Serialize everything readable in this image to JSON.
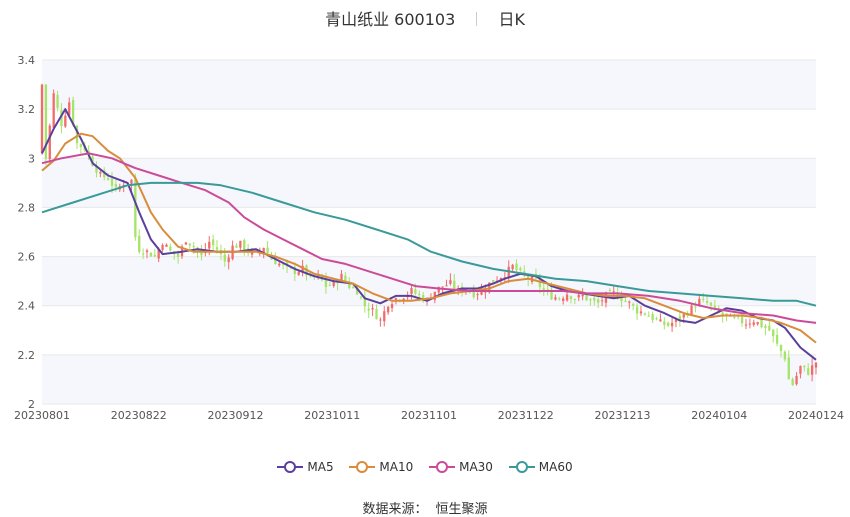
{
  "title": {
    "stock_name": "青山纸业",
    "stock_code": "600103",
    "period": "日K"
  },
  "source": {
    "label": "数据来源：",
    "provider": "恒生聚源"
  },
  "colors": {
    "up": "#f26b6b",
    "down": "#a4e468",
    "grid": "#e8e8e8",
    "band": "#f5f7fc",
    "axis_text": "#555555"
  },
  "chart_data": {
    "type": "candlestick",
    "title": "青山纸业 600103 日K",
    "x_ticks": [
      "20230801",
      "20230822",
      "20230912",
      "20231011",
      "20231101",
      "20231122",
      "20231213",
      "20240104",
      "20240124"
    ],
    "ylim": [
      2,
      3.4
    ],
    "y_ticks": [
      "2",
      "2.2",
      "2.4",
      "2.6",
      "2.8",
      "3",
      "3.2",
      "3.4"
    ],
    "legend_position": "bottom",
    "grid": true,
    "ma_series": [
      {
        "name": "MA5",
        "color": "#5b3f9c",
        "points": [
          [
            0,
            3.02
          ],
          [
            3,
            3.12
          ],
          [
            6,
            3.2
          ],
          [
            10,
            3.08
          ],
          [
            13,
            2.98
          ],
          [
            17,
            2.93
          ],
          [
            22,
            2.9
          ],
          [
            25,
            2.78
          ],
          [
            28,
            2.67
          ],
          [
            31,
            2.61
          ],
          [
            36,
            2.62
          ],
          [
            40,
            2.63
          ],
          [
            45,
            2.62
          ],
          [
            50,
            2.62
          ],
          [
            55,
            2.63
          ],
          [
            60,
            2.59
          ],
          [
            65,
            2.55
          ],
          [
            70,
            2.52
          ],
          [
            75,
            2.5
          ],
          [
            80,
            2.49
          ],
          [
            83,
            2.43
          ],
          [
            87,
            2.41
          ],
          [
            91,
            2.44
          ],
          [
            95,
            2.44
          ],
          [
            99,
            2.42
          ],
          [
            103,
            2.45
          ],
          [
            108,
            2.47
          ],
          [
            112,
            2.47
          ],
          [
            116,
            2.49
          ],
          [
            119,
            2.51
          ],
          [
            123,
            2.53
          ],
          [
            127,
            2.52
          ],
          [
            131,
            2.48
          ],
          [
            135,
            2.46
          ],
          [
            139,
            2.45
          ],
          [
            143,
            2.44
          ],
          [
            147,
            2.43
          ],
          [
            151,
            2.44
          ],
          [
            155,
            2.4
          ],
          [
            160,
            2.37
          ],
          [
            164,
            2.34
          ],
          [
            168,
            2.33
          ],
          [
            172,
            2.36
          ],
          [
            176,
            2.39
          ],
          [
            180,
            2.38
          ],
          [
            184,
            2.35
          ],
          [
            188,
            2.34
          ],
          [
            191,
            2.31
          ],
          [
            195,
            2.23
          ],
          [
            199,
            2.18
          ]
        ]
      },
      {
        "name": "MA10",
        "color": "#d88c3c",
        "points": [
          [
            0,
            2.95
          ],
          [
            3,
            2.99
          ],
          [
            6,
            3.06
          ],
          [
            10,
            3.1
          ],
          [
            13,
            3.09
          ],
          [
            17,
            3.03
          ],
          [
            20,
            3.0
          ],
          [
            24,
            2.92
          ],
          [
            28,
            2.78
          ],
          [
            31,
            2.71
          ],
          [
            35,
            2.64
          ],
          [
            39,
            2.62
          ],
          [
            44,
            2.62
          ],
          [
            49,
            2.62
          ],
          [
            55,
            2.62
          ],
          [
            60,
            2.6
          ],
          [
            65,
            2.57
          ],
          [
            70,
            2.53
          ],
          [
            75,
            2.51
          ],
          [
            80,
            2.49
          ],
          [
            85,
            2.45
          ],
          [
            90,
            2.42
          ],
          [
            95,
            2.42
          ],
          [
            100,
            2.43
          ],
          [
            105,
            2.45
          ],
          [
            110,
            2.46
          ],
          [
            115,
            2.47
          ],
          [
            120,
            2.5
          ],
          [
            125,
            2.51
          ],
          [
            130,
            2.49
          ],
          [
            135,
            2.47
          ],
          [
            140,
            2.45
          ],
          [
            145,
            2.44
          ],
          [
            150,
            2.44
          ],
          [
            155,
            2.43
          ],
          [
            160,
            2.4
          ],
          [
            165,
            2.37
          ],
          [
            170,
            2.35
          ],
          [
            175,
            2.36
          ],
          [
            180,
            2.36
          ],
          [
            185,
            2.35
          ],
          [
            190,
            2.33
          ],
          [
            195,
            2.3
          ],
          [
            199,
            2.25
          ]
        ]
      },
      {
        "name": "MA30",
        "color": "#cc4b99",
        "points": [
          [
            0,
            2.98
          ],
          [
            5,
            3.0
          ],
          [
            12,
            3.02
          ],
          [
            18,
            3.0
          ],
          [
            24,
            2.96
          ],
          [
            30,
            2.93
          ],
          [
            36,
            2.9
          ],
          [
            42,
            2.87
          ],
          [
            48,
            2.82
          ],
          [
            52,
            2.76
          ],
          [
            57,
            2.71
          ],
          [
            62,
            2.67
          ],
          [
            67,
            2.63
          ],
          [
            72,
            2.59
          ],
          [
            78,
            2.57
          ],
          [
            84,
            2.54
          ],
          [
            90,
            2.51
          ],
          [
            96,
            2.48
          ],
          [
            102,
            2.47
          ],
          [
            110,
            2.46
          ],
          [
            118,
            2.46
          ],
          [
            126,
            2.46
          ],
          [
            134,
            2.46
          ],
          [
            140,
            2.45
          ],
          [
            148,
            2.45
          ],
          [
            156,
            2.44
          ],
          [
            164,
            2.42
          ],
          [
            172,
            2.39
          ],
          [
            180,
            2.37
          ],
          [
            188,
            2.36
          ],
          [
            194,
            2.34
          ],
          [
            199,
            2.33
          ]
        ]
      },
      {
        "name": "MA60",
        "color": "#3a9999",
        "points": [
          [
            0,
            2.78
          ],
          [
            8,
            2.82
          ],
          [
            16,
            2.86
          ],
          [
            22,
            2.89
          ],
          [
            28,
            2.9
          ],
          [
            34,
            2.9
          ],
          [
            40,
            2.9
          ],
          [
            46,
            2.89
          ],
          [
            54,
            2.86
          ],
          [
            62,
            2.82
          ],
          [
            70,
            2.78
          ],
          [
            78,
            2.75
          ],
          [
            86,
            2.71
          ],
          [
            94,
            2.67
          ],
          [
            100,
            2.62
          ],
          [
            108,
            2.58
          ],
          [
            116,
            2.55
          ],
          [
            124,
            2.53
          ],
          [
            132,
            2.51
          ],
          [
            140,
            2.5
          ],
          [
            148,
            2.48
          ],
          [
            156,
            2.46
          ],
          [
            164,
            2.45
          ],
          [
            172,
            2.44
          ],
          [
            180,
            2.43
          ],
          [
            188,
            2.42
          ],
          [
            194,
            2.42
          ],
          [
            199,
            2.4
          ]
        ]
      }
    ],
    "candle_path": [
      [
        0,
        3.3
      ],
      [
        1,
        3.0
      ],
      [
        3,
        3.26
      ],
      [
        5,
        3.14
      ],
      [
        7,
        3.23
      ],
      [
        9,
        3.06
      ],
      [
        11,
        3.04
      ],
      [
        13,
        2.98
      ],
      [
        15,
        2.93
      ],
      [
        17,
        2.92
      ],
      [
        19,
        2.87
      ],
      [
        21,
        2.9
      ],
      [
        23,
        2.91
      ],
      [
        24,
        2.68
      ],
      [
        25,
        2.63
      ],
      [
        27,
        2.62
      ],
      [
        29,
        2.6
      ],
      [
        31,
        2.66
      ],
      [
        33,
        2.62
      ],
      [
        35,
        2.6
      ],
      [
        37,
        2.67
      ],
      [
        39,
        2.64
      ],
      [
        41,
        2.6
      ],
      [
        43,
        2.66
      ],
      [
        45,
        2.63
      ],
      [
        47,
        2.58
      ],
      [
        49,
        2.64
      ],
      [
        51,
        2.65
      ],
      [
        53,
        2.62
      ],
      [
        55,
        2.61
      ],
      [
        57,
        2.64
      ],
      [
        59,
        2.59
      ],
      [
        61,
        2.57
      ],
      [
        63,
        2.55
      ],
      [
        65,
        2.54
      ],
      [
        67,
        2.55
      ],
      [
        69,
        2.51
      ],
      [
        71,
        2.52
      ],
      [
        73,
        2.48
      ],
      [
        75,
        2.49
      ],
      [
        77,
        2.52
      ],
      [
        79,
        2.48
      ],
      [
        81,
        2.46
      ],
      [
        83,
        2.4
      ],
      [
        85,
        2.38
      ],
      [
        87,
        2.34
      ],
      [
        89,
        2.41
      ],
      [
        91,
        2.43
      ],
      [
        93,
        2.44
      ],
      [
        95,
        2.46
      ],
      [
        97,
        2.44
      ],
      [
        99,
        2.42
      ],
      [
        101,
        2.46
      ],
      [
        103,
        2.48
      ],
      [
        105,
        2.49
      ],
      [
        107,
        2.46
      ],
      [
        109,
        2.47
      ],
      [
        111,
        2.45
      ],
      [
        113,
        2.46
      ],
      [
        115,
        2.49
      ],
      [
        117,
        2.51
      ],
      [
        119,
        2.53
      ],
      [
        121,
        2.56
      ],
      [
        123,
        2.53
      ],
      [
        125,
        2.51
      ],
      [
        127,
        2.5
      ],
      [
        129,
        2.46
      ],
      [
        131,
        2.44
      ],
      [
        133,
        2.43
      ],
      [
        135,
        2.45
      ],
      [
        137,
        2.43
      ],
      [
        139,
        2.44
      ],
      [
        141,
        2.42
      ],
      [
        143,
        2.41
      ],
      [
        145,
        2.44
      ],
      [
        147,
        2.45
      ],
      [
        149,
        2.43
      ],
      [
        151,
        2.41
      ],
      [
        153,
        2.38
      ],
      [
        155,
        2.37
      ],
      [
        157,
        2.35
      ],
      [
        159,
        2.33
      ],
      [
        161,
        2.32
      ],
      [
        163,
        2.34
      ],
      [
        165,
        2.36
      ],
      [
        167,
        2.39
      ],
      [
        169,
        2.42
      ],
      [
        171,
        2.41
      ],
      [
        173,
        2.38
      ],
      [
        175,
        2.36
      ],
      [
        177,
        2.35
      ],
      [
        179,
        2.34
      ],
      [
        181,
        2.33
      ],
      [
        183,
        2.34
      ],
      [
        185,
        2.32
      ],
      [
        187,
        2.3
      ],
      [
        189,
        2.24
      ],
      [
        191,
        2.19
      ],
      [
        192,
        2.1
      ],
      [
        193,
        2.08
      ],
      [
        195,
        2.15
      ],
      [
        197,
        2.13
      ],
      [
        199,
        2.17
      ]
    ]
  }
}
